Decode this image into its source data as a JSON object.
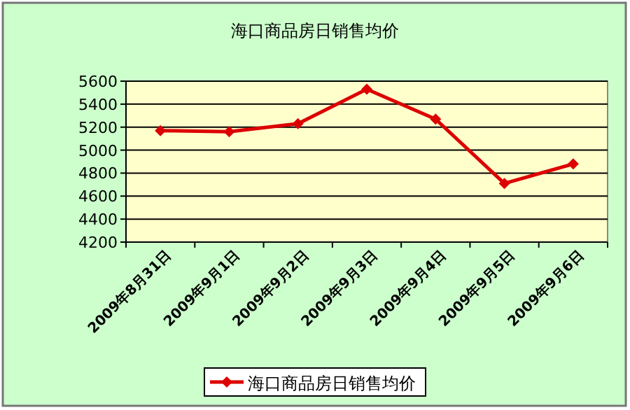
{
  "chart_data": {
    "type": "line",
    "title": "海口商品房日销售均价",
    "categories": [
      "2009年8月31日",
      "2009年9月1日",
      "2009年9月2日",
      "2009年9月3日",
      "2009年9月4日",
      "2009年9月5日",
      "2009年9月6日"
    ],
    "series": [
      {
        "name": "海口商品房日销售均价",
        "color": "#dd0000",
        "values": [
          5170,
          5160,
          5230,
          5530,
          5270,
          4710,
          4880
        ]
      }
    ],
    "ylim": [
      4200,
      5600
    ],
    "yticks": [
      4200,
      4400,
      4600,
      4800,
      5000,
      5200,
      5400,
      5600
    ],
    "grid": "y",
    "legend": "bottom",
    "marker": "diamond",
    "line_style": "solid"
  }
}
